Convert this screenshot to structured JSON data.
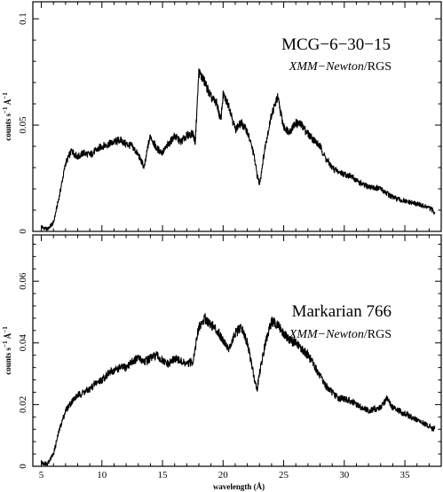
{
  "chart_data": [
    {
      "type": "line",
      "panel": "top",
      "annotation": {
        "object": "MCG−6−30−15",
        "instrument_italic": "XMM−Newton",
        "instrument_rest": "/RGS"
      },
      "ylabel": {
        "base": "counts s",
        "exp1": "−1",
        "unit": " Å",
        "exp2": "−1"
      },
      "xlim": [
        4.3,
        38
      ],
      "ylim": [
        0,
        0.108
      ],
      "yticks": [
        0,
        0.05,
        0.1
      ],
      "ytick_labels": [
        "0",
        "0.05",
        "0.1"
      ],
      "series": [
        {
          "x": [
            5.0,
            5.5,
            6.0,
            6.5,
            7.0,
            7.5,
            8.0,
            8.5,
            9.0,
            9.5,
            10.0,
            10.5,
            11.0,
            11.5,
            12.0,
            12.5,
            13.0,
            13.5,
            13.8,
            14.0,
            14.5,
            15.0,
            15.5,
            16.0,
            16.5,
            17.0,
            17.5,
            17.7,
            18.0,
            18.5,
            19.0,
            19.5,
            19.8,
            20.0,
            20.5,
            21.0,
            21.5,
            22.0,
            22.5,
            22.8,
            23.0,
            23.5,
            24.0,
            24.5,
            25.0,
            25.5,
            26.0,
            26.5,
            27.0,
            27.5,
            28.0,
            28.5,
            29.0,
            29.5,
            30.0,
            30.5,
            31.0,
            31.5,
            32.0,
            33.0,
            34.0,
            35.0,
            36.0,
            37.0,
            37.5
          ],
          "y": [
            0.002,
            0.001,
            0.004,
            0.017,
            0.032,
            0.038,
            0.035,
            0.037,
            0.036,
            0.038,
            0.04,
            0.041,
            0.042,
            0.043,
            0.041,
            0.04,
            0.036,
            0.03,
            0.04,
            0.045,
            0.039,
            0.037,
            0.041,
            0.045,
            0.042,
            0.045,
            0.046,
            0.042,
            0.075,
            0.07,
            0.063,
            0.06,
            0.052,
            0.064,
            0.059,
            0.048,
            0.051,
            0.047,
            0.037,
            0.027,
            0.022,
            0.041,
            0.055,
            0.063,
            0.049,
            0.047,
            0.051,
            0.05,
            0.046,
            0.043,
            0.04,
            0.034,
            0.03,
            0.028,
            0.027,
            0.026,
            0.024,
            0.022,
            0.021,
            0.02,
            0.016,
            0.014,
            0.013,
            0.011,
            0.009
          ]
        }
      ]
    },
    {
      "type": "line",
      "panel": "bottom",
      "annotation": {
        "object": "Markarian 766",
        "instrument_italic": "XMM−Newton",
        "instrument_rest": "/RGS"
      },
      "ylabel": {
        "base": "counts s",
        "exp1": "−1",
        "unit": " Å",
        "exp2": "−1"
      },
      "xlabel": "wavelength (Å)",
      "xlim": [
        4.3,
        38
      ],
      "ylim": [
        0,
        0.075
      ],
      "xticks": [
        5,
        10,
        15,
        20,
        25,
        30,
        35
      ],
      "xtick_labels": [
        "5",
        "10",
        "15",
        "20",
        "25",
        "30",
        "35"
      ],
      "yticks": [
        0,
        0.02,
        0.04,
        0.06
      ],
      "ytick_labels": [
        "0",
        "0.02",
        "0.04",
        "0.06"
      ],
      "series": [
        {
          "x": [
            5.0,
            5.5,
            6.0,
            6.5,
            7.0,
            7.5,
            8.0,
            8.5,
            9.0,
            9.5,
            10.0,
            10.5,
            11.0,
            11.5,
            12.0,
            12.5,
            13.0,
            13.5,
            14.0,
            14.5,
            15.0,
            15.5,
            16.0,
            16.5,
            17.0,
            17.5,
            18.0,
            18.5,
            19.0,
            19.5,
            20.0,
            20.5,
            21.0,
            21.5,
            22.0,
            22.5,
            22.8,
            23.0,
            23.5,
            24.0,
            24.5,
            25.0,
            25.5,
            26.0,
            26.5,
            27.0,
            27.5,
            28.0,
            28.5,
            29.0,
            29.5,
            30.0,
            31.0,
            32.0,
            33.0,
            33.5,
            34.0,
            35.0,
            36.0,
            37.0,
            37.5
          ],
          "y": [
            0.001,
            0.001,
            0.004,
            0.012,
            0.018,
            0.021,
            0.023,
            0.024,
            0.025,
            0.027,
            0.028,
            0.03,
            0.031,
            0.032,
            0.032,
            0.034,
            0.035,
            0.034,
            0.035,
            0.036,
            0.034,
            0.033,
            0.035,
            0.034,
            0.033,
            0.034,
            0.045,
            0.048,
            0.046,
            0.044,
            0.041,
            0.038,
            0.043,
            0.045,
            0.04,
            0.03,
            0.025,
            0.03,
            0.04,
            0.047,
            0.046,
            0.043,
            0.041,
            0.04,
            0.038,
            0.036,
            0.033,
            0.029,
            0.026,
            0.024,
            0.022,
            0.022,
            0.02,
            0.018,
            0.019,
            0.022,
            0.019,
            0.017,
            0.015,
            0.013,
            0.012
          ]
        }
      ]
    }
  ]
}
